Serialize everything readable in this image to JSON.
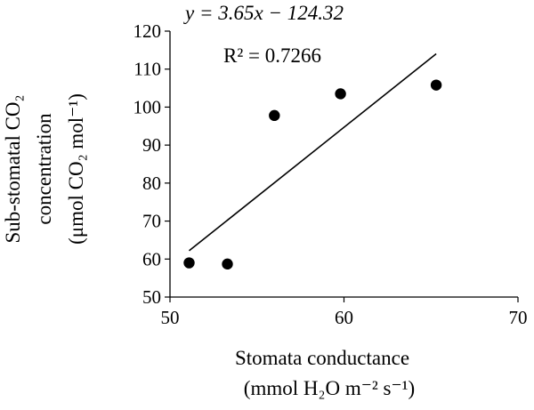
{
  "chart_data": {
    "type": "scatter",
    "title": "",
    "xlabel_line1": "Stomata conductance",
    "xlabel_line2": "(mmol H₂O m⁻² s⁻¹)",
    "ylabel_line1": "Sub-stomatal CO₂",
    "ylabel_line2": "concentration",
    "ylabel_line3": "(μmol CO₂ mol⁻¹)",
    "xlim": [
      50,
      70
    ],
    "ylim": [
      50,
      120
    ],
    "x_ticks": [
      50,
      60,
      70
    ],
    "y_ticks": [
      50,
      60,
      70,
      80,
      90,
      100,
      110,
      120
    ],
    "x_tick_labels": [
      "50",
      "60",
      "70"
    ],
    "y_tick_labels": [
      "50",
      "60",
      "70",
      "80",
      "90",
      "100",
      "110",
      "120"
    ],
    "grid": false,
    "legend": "none",
    "points": [
      {
        "x": 51.1,
        "y": 59.0
      },
      {
        "x": 53.3,
        "y": 58.7
      },
      {
        "x": 56.0,
        "y": 97.8
      },
      {
        "x": 59.8,
        "y": 103.5
      },
      {
        "x": 65.3,
        "y": 105.8
      }
    ],
    "trendline": {
      "slope": 3.65,
      "intercept": -124.32,
      "x_range": [
        51.1,
        65.3
      ],
      "equation": "y = 3.65x − 124.32",
      "r2_label": "R² = 0.7266"
    },
    "colors": {
      "marker": "#000000",
      "line": "#000000",
      "axis": "#000000"
    }
  }
}
